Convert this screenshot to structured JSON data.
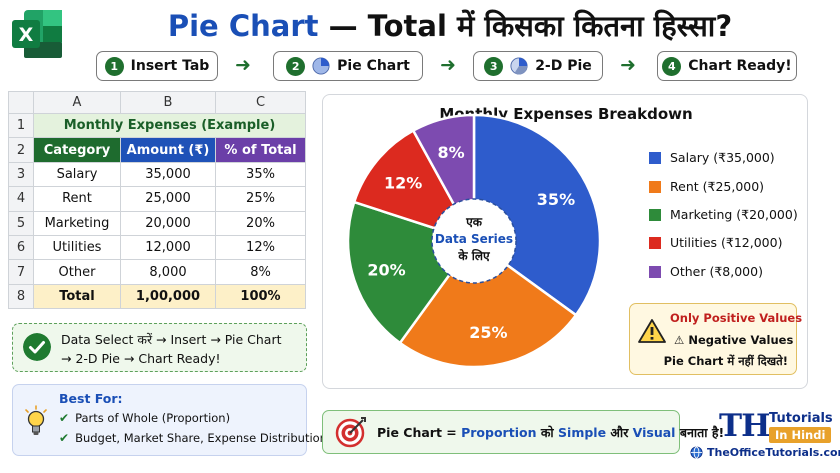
{
  "header": {
    "title_main": "Pie Chart",
    "title_rest": " — Total में किसका कितना हिस्सा?"
  },
  "steps": [
    {
      "num": "1",
      "label": "Insert Tab"
    },
    {
      "num": "2",
      "label": "Pie Chart"
    },
    {
      "num": "3",
      "label": "2-D Pie"
    },
    {
      "num": "4",
      "label": "Chart Ready!"
    }
  ],
  "sheet": {
    "col_headers": [
      "A",
      "B",
      "C"
    ],
    "row_numbers": [
      "1",
      "2",
      "3",
      "4",
      "5",
      "6",
      "7",
      "8"
    ],
    "title": "Monthly Expenses (Example)",
    "headers": [
      "Category",
      "Amount (₹)",
      "% of Total"
    ],
    "rows": [
      [
        "Salary",
        "35,000",
        "35%"
      ],
      [
        "Rent",
        "25,000",
        "25%"
      ],
      [
        "Marketing",
        "20,000",
        "20%"
      ],
      [
        "Utilities",
        "12,000",
        "12%"
      ],
      [
        "Other",
        "8,000",
        "8%"
      ]
    ],
    "total": [
      "Total",
      "1,00,000",
      "100%"
    ]
  },
  "note": {
    "line1": "Data Select करें → Insert → Pie Chart",
    "line2": "→ 2-D Pie → Chart Ready!"
  },
  "best_for": {
    "title": "Best For:",
    "items": [
      "Parts of Whole (Proportion)",
      "Budget, Market Share, Expense Distribution"
    ]
  },
  "chart_data": {
    "type": "pie",
    "title": "Monthly Expenses Breakdown",
    "categories": [
      "Salary",
      "Rent",
      "Marketing",
      "Utilities",
      "Other"
    ],
    "values": [
      35,
      25,
      20,
      12,
      8
    ],
    "amounts": [
      35000,
      25000,
      20000,
      12000,
      8000
    ],
    "labels": [
      "35%",
      "25%",
      "20%",
      "12%",
      "8%"
    ],
    "colors": [
      "#2e5ccc",
      "#f07a1a",
      "#2e8b3a",
      "#dc2a1f",
      "#7d4bb0"
    ],
    "legend": [
      "Salary (₹35,000)",
      "Rent (₹25,000)",
      "Marketing (₹20,000)",
      "Utilities (₹12,000)",
      "Other (₹8,000)"
    ],
    "legend_position": "right",
    "center_label": [
      "एक",
      "Data Series",
      "के लिए"
    ]
  },
  "warning": {
    "line1": "Only Positive Values",
    "line2": "Negative Values",
    "line3": "Pie Chart में नहीं दिखते!"
  },
  "banner": {
    "part1": "Pie Chart = ",
    "part2": "Proportion",
    "part3": " को ",
    "part4": "Simple",
    "part5": " और ",
    "part6": "Visual",
    "part7": " बनाता है!"
  },
  "brand": {
    "logo": "TH",
    "tutorials": "Tutorials",
    "hindi": "In Hindi",
    "site": "TheOfficeTutorials.com"
  },
  "icons": {
    "excel": "excel-logo-icon",
    "check": "check-circle-icon",
    "bulb": "lightbulb-icon",
    "warning": "warning-icon",
    "target": "target-icon",
    "globe": "globe-icon"
  }
}
